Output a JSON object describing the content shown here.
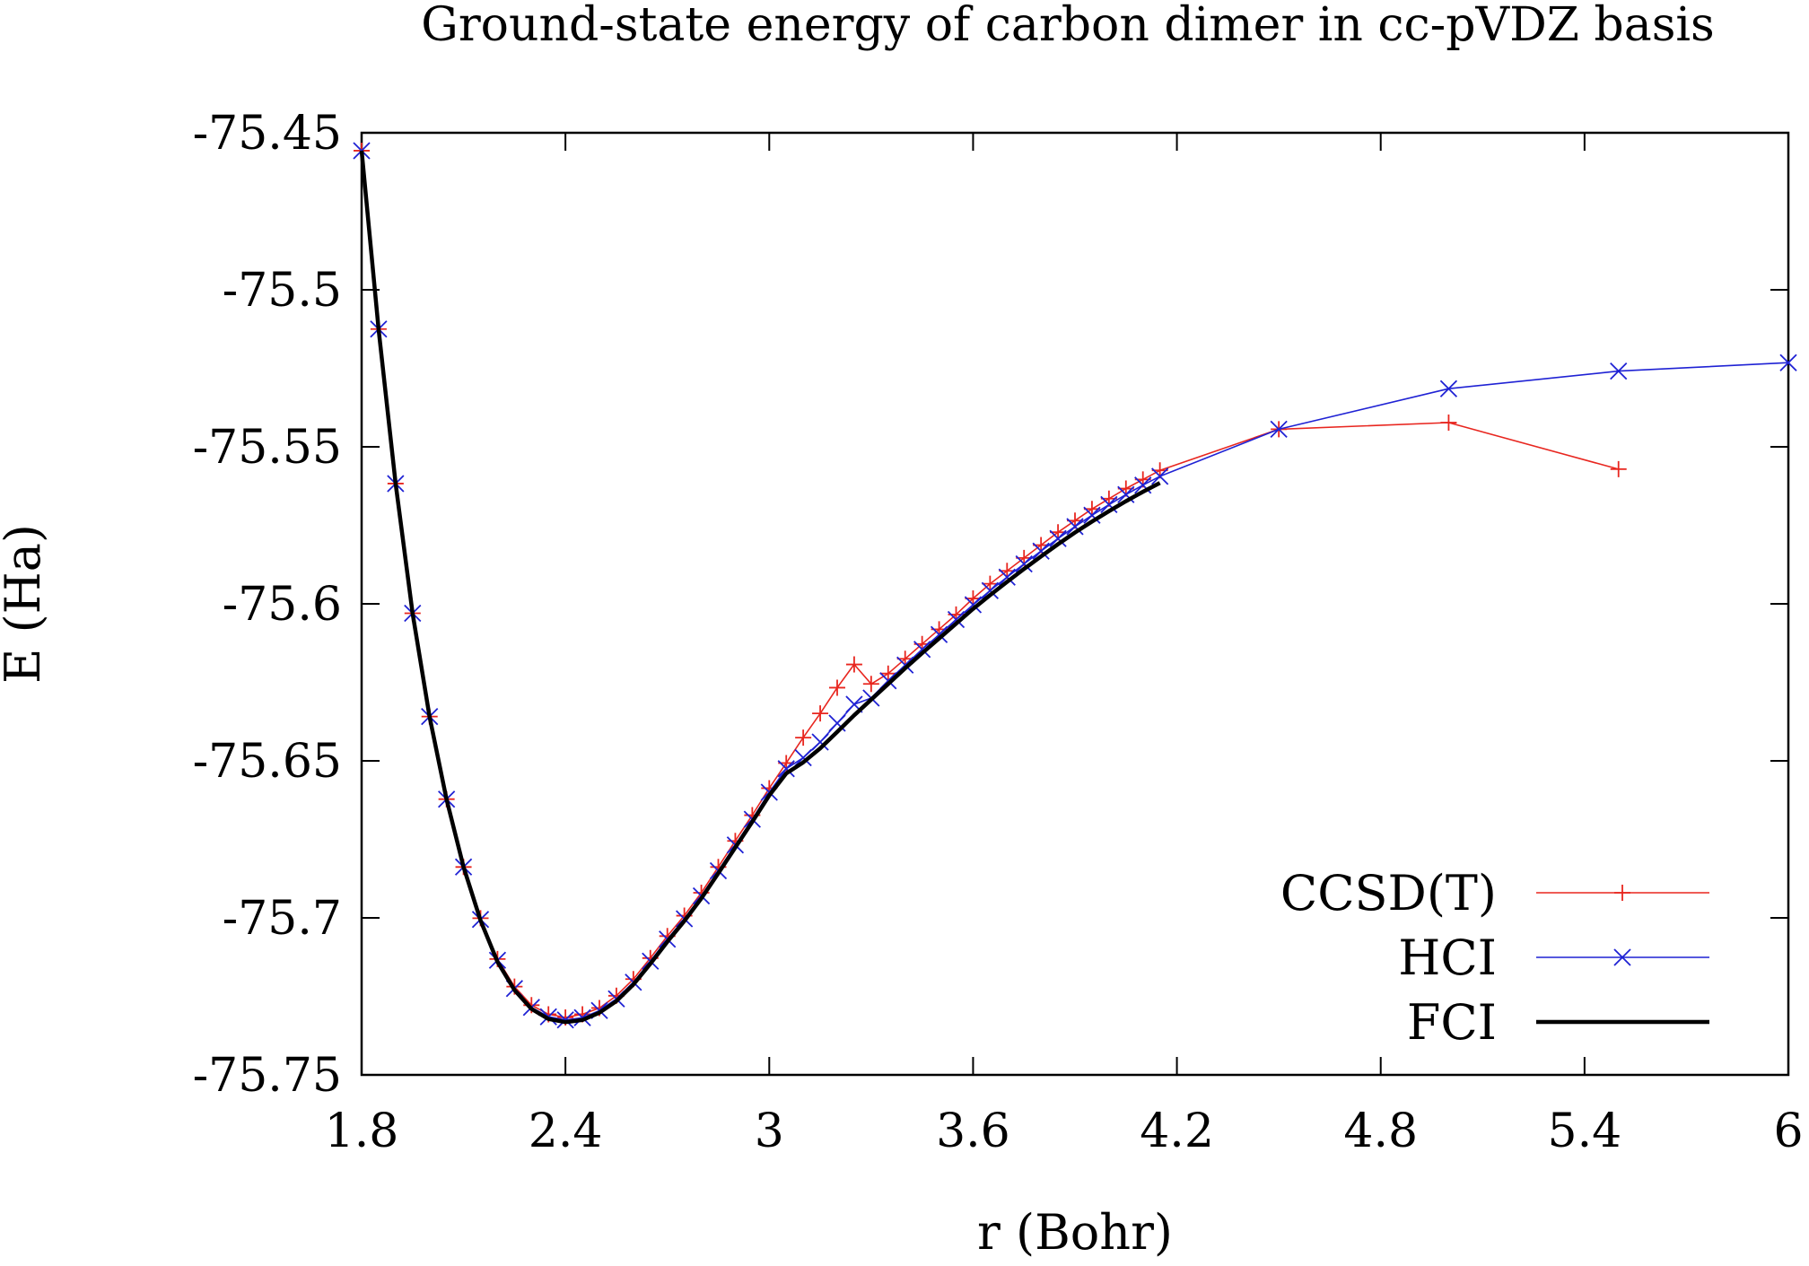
{
  "chart_data": {
    "type": "line",
    "title": "Ground-state energy of carbon dimer in cc-pVDZ basis",
    "xlabel": "r (Bohr)",
    "ylabel": "E (Ha)",
    "xlim": [
      1.8,
      6.0
    ],
    "ylim": [
      -75.75,
      -75.45
    ],
    "xticks": [
      1.8,
      2.4,
      3.0,
      3.6,
      4.2,
      4.8,
      5.4,
      6.0
    ],
    "xtick_labels": [
      "1.8",
      "2.4",
      "3",
      "3.6",
      "4.2",
      "4.8",
      "5.4",
      "6"
    ],
    "yticks": [
      -75.45,
      -75.5,
      -75.55,
      -75.6,
      -75.65,
      -75.7,
      -75.75
    ],
    "ytick_labels": [
      "-75.45",
      "-75.5",
      "-75.55",
      "-75.6",
      "-75.65",
      "-75.7",
      "-75.75"
    ],
    "grid": false,
    "legend": "bottom-right",
    "series": [
      {
        "name": "CCSD(T)",
        "color": "#e8261f",
        "marker": "plus",
        "points": [
          [
            1.8,
            -75.4557
          ],
          [
            1.85,
            -75.5125
          ],
          [
            1.9,
            -75.5617
          ],
          [
            1.95,
            -75.603
          ],
          [
            2.0,
            -75.6359
          ],
          [
            2.05,
            -75.6622
          ],
          [
            2.1,
            -75.6838
          ],
          [
            2.15,
            -75.7001
          ],
          [
            2.2,
            -75.7131
          ],
          [
            2.25,
            -75.7219
          ],
          [
            2.3,
            -75.7278
          ],
          [
            2.35,
            -75.7307
          ],
          [
            2.4,
            -75.7317
          ],
          [
            2.45,
            -75.7307
          ],
          [
            2.5,
            -75.7287
          ],
          [
            2.55,
            -75.7248
          ],
          [
            2.6,
            -75.7195
          ],
          [
            2.65,
            -75.7128
          ],
          [
            2.7,
            -75.7058
          ],
          [
            2.75,
            -75.6993
          ],
          [
            2.8,
            -75.692
          ],
          [
            2.85,
            -75.6838
          ],
          [
            2.9,
            -75.6755
          ],
          [
            2.95,
            -75.6673
          ],
          [
            3.0,
            -75.6587
          ],
          [
            3.05,
            -75.6507
          ],
          [
            3.1,
            -75.6426
          ],
          [
            3.15,
            -75.6349
          ],
          [
            3.2,
            -75.6267
          ],
          [
            3.25,
            -75.6193
          ],
          [
            3.3,
            -75.6255
          ],
          [
            3.35,
            -75.6222
          ],
          [
            3.4,
            -75.6175
          ],
          [
            3.45,
            -75.6128
          ],
          [
            3.5,
            -75.6081
          ],
          [
            3.55,
            -75.6034
          ],
          [
            3.6,
            -75.5983
          ],
          [
            3.65,
            -75.5936
          ],
          [
            3.7,
            -75.5895
          ],
          [
            3.75,
            -75.5854
          ],
          [
            3.8,
            -75.5813
          ],
          [
            3.85,
            -75.5772
          ],
          [
            3.9,
            -75.5735
          ],
          [
            3.95,
            -75.5698
          ],
          [
            4.0,
            -75.5665
          ],
          [
            4.05,
            -75.5633
          ],
          [
            4.1,
            -75.5604
          ],
          [
            4.15,
            -75.5575
          ],
          [
            4.5,
            -75.5444
          ],
          [
            5.0,
            -75.5423
          ],
          [
            5.5,
            -75.5571
          ]
        ]
      },
      {
        "name": "HCI",
        "color": "#1f22d4",
        "marker": "cross",
        "points": [
          [
            1.8,
            -75.4557
          ],
          [
            1.85,
            -75.5125
          ],
          [
            1.9,
            -75.5617
          ],
          [
            1.95,
            -75.603
          ],
          [
            2.0,
            -75.6359
          ],
          [
            2.05,
            -75.6622
          ],
          [
            2.1,
            -75.6838
          ],
          [
            2.15,
            -75.7005
          ],
          [
            2.2,
            -75.7135
          ],
          [
            2.25,
            -75.7225
          ],
          [
            2.3,
            -75.7285
          ],
          [
            2.35,
            -75.7315
          ],
          [
            2.4,
            -75.7325
          ],
          [
            2.45,
            -75.7318
          ],
          [
            2.5,
            -75.7295
          ],
          [
            2.55,
            -75.7258
          ],
          [
            2.6,
            -75.7205
          ],
          [
            2.65,
            -75.7138
          ],
          [
            2.7,
            -75.7068
          ],
          [
            2.75,
            -75.7003
          ],
          [
            2.8,
            -75.693
          ],
          [
            2.85,
            -75.685
          ],
          [
            2.9,
            -75.6768
          ],
          [
            2.95,
            -75.6686
          ],
          [
            3.0,
            -75.66
          ],
          [
            3.05,
            -75.6525
          ],
          [
            3.1,
            -75.649
          ],
          [
            3.15,
            -75.644
          ],
          [
            3.2,
            -75.638
          ],
          [
            3.25,
            -75.632
          ],
          [
            3.3,
            -75.63
          ],
          [
            3.35,
            -75.6245
          ],
          [
            3.4,
            -75.6195
          ],
          [
            3.45,
            -75.6145
          ],
          [
            3.5,
            -75.6098
          ],
          [
            3.55,
            -75.605
          ],
          [
            3.6,
            -75.6003
          ],
          [
            3.65,
            -75.5958
          ],
          [
            3.7,
            -75.5915
          ],
          [
            3.75,
            -75.5873
          ],
          [
            3.8,
            -75.5832
          ],
          [
            3.85,
            -75.5792
          ],
          [
            3.9,
            -75.5754
          ],
          [
            3.95,
            -75.5718
          ],
          [
            4.0,
            -75.5684
          ],
          [
            4.05,
            -75.5652
          ],
          [
            4.1,
            -75.5622
          ],
          [
            4.15,
            -75.5594
          ],
          [
            4.5,
            -75.5444
          ],
          [
            5.0,
            -75.5315
          ],
          [
            5.5,
            -75.5259
          ],
          [
            6.0,
            -75.5232
          ]
        ]
      },
      {
        "name": "FCI",
        "color": "#000000",
        "marker": "none",
        "points": [
          [
            1.8,
            -75.4557
          ],
          [
            1.85,
            -75.5125
          ],
          [
            1.9,
            -75.5617
          ],
          [
            1.95,
            -75.603
          ],
          [
            2.0,
            -75.6359
          ],
          [
            2.05,
            -75.6622
          ],
          [
            2.1,
            -75.6838
          ],
          [
            2.15,
            -75.7008
          ],
          [
            2.2,
            -75.714
          ],
          [
            2.25,
            -75.723
          ],
          [
            2.3,
            -75.729
          ],
          [
            2.35,
            -75.7322
          ],
          [
            2.4,
            -75.7332
          ],
          [
            2.45,
            -75.7325
          ],
          [
            2.5,
            -75.7302
          ],
          [
            2.55,
            -75.7265
          ],
          [
            2.6,
            -75.7212
          ],
          [
            2.65,
            -75.7146
          ],
          [
            2.7,
            -75.7076
          ],
          [
            2.75,
            -75.701
          ],
          [
            2.8,
            -75.6938
          ],
          [
            2.85,
            -75.6858
          ],
          [
            2.9,
            -75.6776
          ],
          [
            2.95,
            -75.6694
          ],
          [
            3.0,
            -75.661
          ],
          [
            3.05,
            -75.654
          ],
          [
            3.1,
            -75.6505
          ],
          [
            3.15,
            -75.646
          ],
          [
            3.2,
            -75.6408
          ],
          [
            3.25,
            -75.6355
          ],
          [
            3.3,
            -75.6305
          ],
          [
            3.35,
            -75.6255
          ],
          [
            3.4,
            -75.6205
          ],
          [
            3.45,
            -75.6157
          ],
          [
            3.5,
            -75.611
          ],
          [
            3.55,
            -75.6063
          ],
          [
            3.6,
            -75.6016
          ],
          [
            3.65,
            -75.5972
          ],
          [
            3.7,
            -75.593
          ],
          [
            3.75,
            -75.5889
          ],
          [
            3.8,
            -75.5849
          ],
          [
            3.85,
            -75.581
          ],
          [
            3.9,
            -75.5773
          ],
          [
            3.95,
            -75.5738
          ],
          [
            4.0,
            -75.5705
          ],
          [
            4.05,
            -75.5673
          ],
          [
            4.1,
            -75.5643
          ],
          [
            4.15,
            -75.5615
          ]
        ]
      }
    ]
  }
}
